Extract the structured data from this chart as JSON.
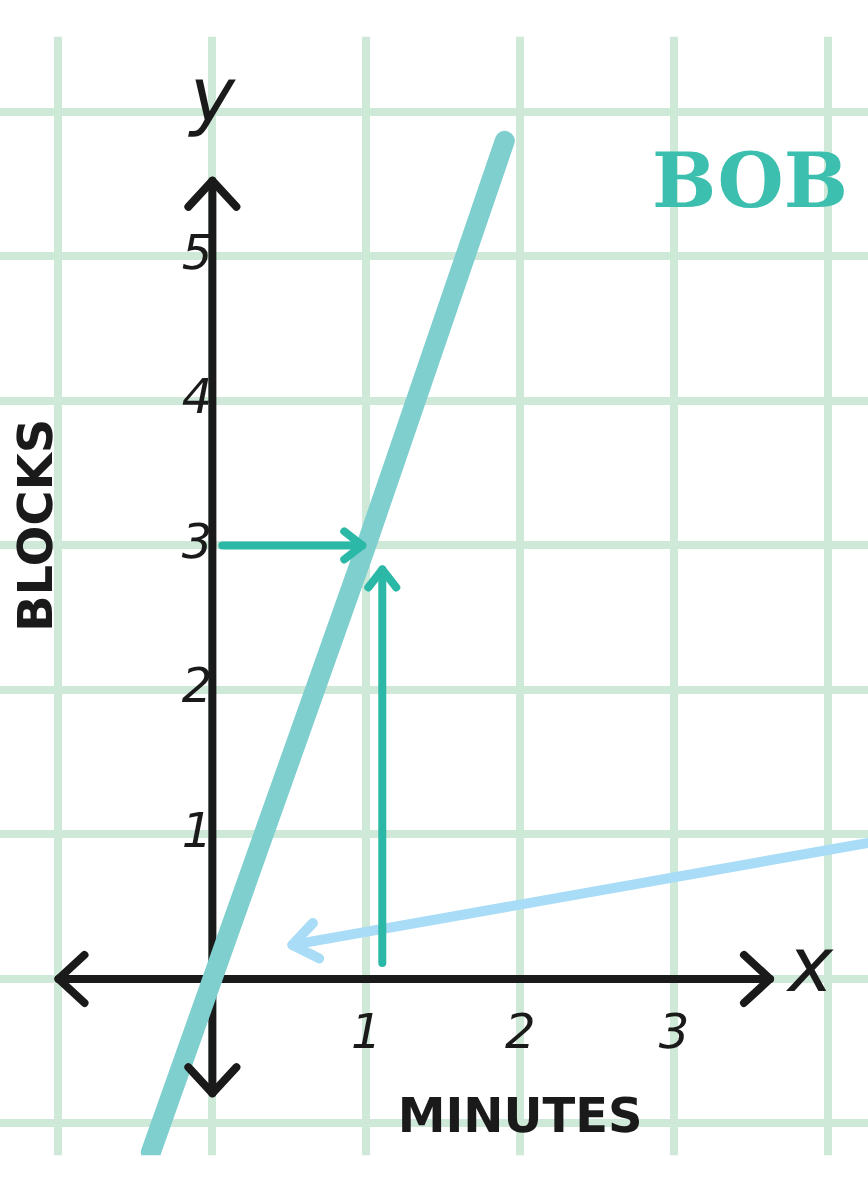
{
  "chart_data": {
    "type": "line",
    "title": "BOB",
    "xlabel": "MINUTES",
    "ylabel": "BLOCKS",
    "annotations": [
      "y",
      "x"
    ],
    "x": [
      -0.4,
      1,
      1.9
    ],
    "series": [
      {
        "color": "#7fcfcf",
        "values": [
          -1.2,
          3,
          5.8
        ]
      }
    ],
    "xlim": [
      -1.38,
      4.26
    ],
    "xticks": [
      {
        "value": -1,
        "label": null
      },
      {
        "value": 0,
        "label": null
      },
      1,
      2,
      3,
      {
        "value": 4,
        "label": null
      }
    ],
    "ylim": [
      -1.22,
      6.52
    ],
    "yticks": [
      {
        "value": -1,
        "label": null
      },
      {
        "value": 0,
        "label": null
      },
      1,
      2,
      3,
      4,
      5,
      {
        "value": 6,
        "label": null
      }
    ],
    "grid": true,
    "legend": false,
    "marker": "none",
    "line_style": "solid"
  }
}
